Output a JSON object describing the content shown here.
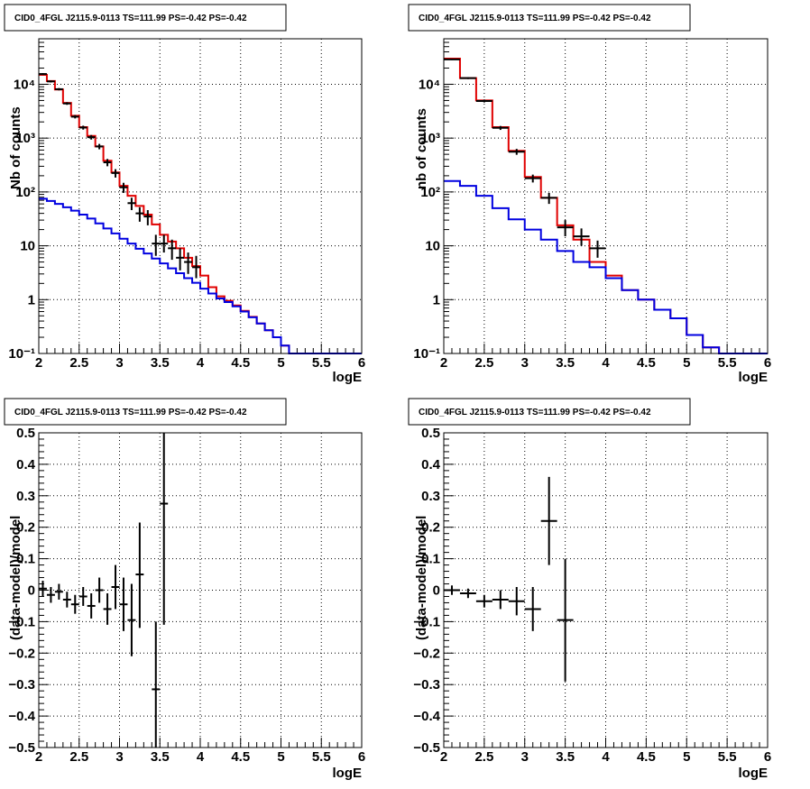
{
  "colors": {
    "data": "#000000",
    "model_total": "#e00000",
    "model_source": "#0000e0",
    "grid": "#000000"
  },
  "chart_data": [
    {
      "type": "line",
      "title": "CID0_4FGL J2115.9-0113 TS=111.99 PS=-0.42 PS=-0.42",
      "xlabel": "logE",
      "ylabel": "Nb of counts",
      "xlim": [
        2,
        6
      ],
      "ylim": [
        0.1,
        70000
      ],
      "yscale": "log",
      "grid": true,
      "x_ticks": [
        "2",
        "2.5",
        "3",
        "3.5",
        "4",
        "4.5",
        "5",
        "5.5",
        "6"
      ],
      "y_ticks": [
        {
          "v": 0.1,
          "t": "10⁻¹"
        },
        {
          "v": 1,
          "t": "1"
        },
        {
          "v": 10,
          "t": "10"
        },
        {
          "v": 100,
          "t": "10²"
        },
        {
          "v": 1000,
          "t": "10³"
        },
        {
          "v": 10000,
          "t": "10⁴"
        }
      ],
      "bin_edges": [
        2.0,
        2.1,
        2.2,
        2.3,
        2.4,
        2.5,
        2.6,
        2.7,
        2.8,
        2.9,
        3.0,
        3.1,
        3.2,
        3.3,
        3.4,
        3.5,
        3.6,
        3.7,
        3.8,
        3.9,
        4.0,
        4.1,
        4.2,
        4.3,
        4.4,
        4.5,
        4.6,
        4.7,
        4.8,
        4.9,
        5.0,
        5.1,
        5.2,
        5.3,
        5.4,
        5.5,
        5.6,
        5.7,
        5.8,
        5.9,
        6.0
      ],
      "series": [
        {
          "role": "model_total",
          "values": [
            15000,
            11500,
            8000,
            4500,
            2600,
            1600,
            1100,
            700,
            380,
            230,
            130,
            85,
            55,
            38,
            25,
            16,
            12,
            9,
            6,
            4.2,
            2.8,
            1.7,
            1.15,
            0.95,
            0.78,
            0.62,
            0.48,
            0.36,
            0.27,
            0.2,
            0.14,
            0.1,
            0.1,
            0.1,
            0.1,
            0.1,
            0.1,
            0.1,
            0.1,
            0.1
          ]
        },
        {
          "role": "model_source",
          "values": [
            75,
            68,
            60,
            52,
            45,
            38,
            32,
            26,
            21,
            17,
            13.5,
            11,
            8.8,
            7.2,
            5.8,
            4.7,
            3.8,
            3.1,
            2.5,
            2.05,
            1.6,
            1.3,
            1.05,
            0.9,
            0.75,
            0.6,
            0.47,
            0.36,
            0.27,
            0.2,
            0.14,
            0.1,
            0.1,
            0.1,
            0.1,
            0.1,
            0.1,
            0.1,
            0.1,
            0.1
          ]
        }
      ],
      "points": [
        {
          "x": 2.05,
          "y": 15500,
          "ex": 0.05,
          "ey": [
            14900,
            16100
          ]
        },
        {
          "x": 2.15,
          "y": 11300,
          "ex": 0.05,
          "ey": [
            10800,
            11800
          ]
        },
        {
          "x": 2.25,
          "y": 8100,
          "ex": 0.05,
          "ey": [
            7700,
            8500
          ]
        },
        {
          "x": 2.35,
          "y": 4400,
          "ex": 0.05,
          "ey": [
            4150,
            4650
          ]
        },
        {
          "x": 2.45,
          "y": 2500,
          "ex": 0.05,
          "ey": [
            2320,
            2680
          ]
        },
        {
          "x": 2.55,
          "y": 1570,
          "ex": 0.05,
          "ey": [
            1440,
            1700
          ]
        },
        {
          "x": 2.65,
          "y": 1040,
          "ex": 0.05,
          "ey": [
            940,
            1140
          ]
        },
        {
          "x": 2.75,
          "y": 700,
          "ex": 0.05,
          "ey": [
            620,
            780
          ]
        },
        {
          "x": 2.85,
          "y": 355,
          "ex": 0.05,
          "ey": [
            300,
            410
          ]
        },
        {
          "x": 2.95,
          "y": 225,
          "ex": 0.05,
          "ey": [
            185,
            265
          ]
        },
        {
          "x": 3.05,
          "y": 122,
          "ex": 0.05,
          "ey": [
            96,
            148
          ]
        },
        {
          "x": 3.15,
          "y": 62,
          "ex": 0.05,
          "ey": [
            46,
            78
          ]
        },
        {
          "x": 3.25,
          "y": 40,
          "ex": 0.05,
          "ey": [
            28,
            52
          ]
        },
        {
          "x": 3.35,
          "y": 35,
          "ex": 0.05,
          "ey": [
            24,
            46
          ]
        },
        {
          "x": 3.45,
          "y": 11,
          "ex": 0.05,
          "ey": [
            6.5,
            16
          ]
        },
        {
          "x": 3.55,
          "y": 11,
          "ex": 0.05,
          "ey": [
            7.5,
            16
          ]
        },
        {
          "x": 3.65,
          "y": 9,
          "ex": 0.05,
          "ey": [
            5.5,
            13
          ]
        },
        {
          "x": 3.75,
          "y": 6,
          "ex": 0.05,
          "ey": [
            3.5,
            9
          ]
        },
        {
          "x": 3.85,
          "y": 5,
          "ex": 0.05,
          "ey": [
            3,
            7.5
          ]
        },
        {
          "x": 3.95,
          "y": 4,
          "ex": 0.05,
          "ey": [
            2.5,
            6.5
          ]
        }
      ]
    },
    {
      "type": "line",
      "title": "CID0_4FGL J2115.9-0113 TS=111.99 PS=-0.42 PS=-0.42",
      "xlabel": "logE",
      "ylabel": "nb of counts",
      "xlim": [
        2,
        6
      ],
      "ylim": [
        0.1,
        70000
      ],
      "yscale": "log",
      "grid": true,
      "x_ticks": [
        "2",
        "2.5",
        "3",
        "3.5",
        "4",
        "4.5",
        "5",
        "5.5",
        "6"
      ],
      "y_ticks": [
        {
          "v": 0.1,
          "t": "10⁻¹"
        },
        {
          "v": 1,
          "t": "1"
        },
        {
          "v": 10,
          "t": "10"
        },
        {
          "v": 100,
          "t": "10²"
        },
        {
          "v": 1000,
          "t": "10³"
        },
        {
          "v": 10000,
          "t": "10⁴"
        }
      ],
      "bin_edges": [
        2.0,
        2.2,
        2.4,
        2.6,
        2.8,
        3.0,
        3.2,
        3.4,
        3.6,
        3.8,
        4.0,
        4.2,
        4.4,
        4.6,
        4.8,
        5.0,
        5.2,
        5.4,
        5.6,
        5.8,
        6.0
      ],
      "series": [
        {
          "role": "model_total",
          "values": [
            30000,
            13000,
            5000,
            1600,
            580,
            190,
            78,
            24,
            13,
            5,
            2.8,
            1.5,
            1.0,
            0.65,
            0.45,
            0.22,
            0.13,
            0.1,
            0.1,
            0.1
          ]
        },
        {
          "role": "model_source",
          "values": [
            160,
            130,
            85,
            50,
            31,
            20,
            13,
            8,
            5,
            4,
            2.5,
            1.5,
            1.0,
            0.65,
            0.45,
            0.22,
            0.13,
            0.1,
            0.1,
            0.1
          ]
        }
      ],
      "points": [
        {
          "x": 2.1,
          "y": 29000,
          "ex": 0.1,
          "ey": [
            28200,
            29800
          ]
        },
        {
          "x": 2.3,
          "y": 13000,
          "ex": 0.1,
          "ey": [
            12500,
            13500
          ]
        },
        {
          "x": 2.5,
          "y": 4900,
          "ex": 0.1,
          "ey": [
            4600,
            5200
          ]
        },
        {
          "x": 2.7,
          "y": 1550,
          "ex": 0.1,
          "ey": [
            1420,
            1680
          ]
        },
        {
          "x": 2.9,
          "y": 560,
          "ex": 0.1,
          "ey": [
            490,
            630
          ]
        },
        {
          "x": 3.1,
          "y": 180,
          "ex": 0.1,
          "ey": [
            150,
            210
          ]
        },
        {
          "x": 3.3,
          "y": 78,
          "ex": 0.1,
          "ey": [
            60,
            96
          ]
        },
        {
          "x": 3.5,
          "y": 22,
          "ex": 0.1,
          "ey": [
            15,
            30
          ]
        },
        {
          "x": 3.7,
          "y": 15,
          "ex": 0.1,
          "ey": [
            10,
            21
          ]
        },
        {
          "x": 3.9,
          "y": 9,
          "ex": 0.1,
          "ey": [
            6,
            12.5
          ]
        }
      ]
    },
    {
      "type": "scatter",
      "title": "CID0_4FGL J2115.9-0113 TS=111.99 PS=-0.42 PS=-0.42",
      "xlabel": "logE",
      "ylabel": "(data-model)/model",
      "xlim": [
        2,
        6
      ],
      "ylim": [
        -0.5,
        0.5
      ],
      "grid": true,
      "x_ticks": [
        "2",
        "2.5",
        "3",
        "3.5",
        "4",
        "4.5",
        "5",
        "5.5",
        "6"
      ],
      "y_ticks": [
        {
          "v": -0.5,
          "t": "−0.5"
        },
        {
          "v": -0.4,
          "t": "−0.4"
        },
        {
          "v": -0.3,
          "t": "−0.3"
        },
        {
          "v": -0.2,
          "t": "−0.2"
        },
        {
          "v": -0.1,
          "t": "−0.1"
        },
        {
          "v": 0,
          "t": "0"
        },
        {
          "v": 0.1,
          "t": "0.1"
        },
        {
          "v": 0.2,
          "t": "0.2"
        },
        {
          "v": 0.3,
          "t": "0.3"
        },
        {
          "v": 0.4,
          "t": "0.4"
        },
        {
          "v": 0.5,
          "t": "0.5"
        }
      ],
      "points": [
        {
          "x": 2.05,
          "y": 0.005,
          "ex": 0.05,
          "ey": [
            -0.02,
            0.03
          ]
        },
        {
          "x": 2.15,
          "y": -0.015,
          "ex": 0.05,
          "ey": [
            -0.04,
            0.01
          ]
        },
        {
          "x": 2.25,
          "y": -0.005,
          "ex": 0.05,
          "ey": [
            -0.03,
            0.02
          ]
        },
        {
          "x": 2.35,
          "y": -0.03,
          "ex": 0.05,
          "ey": [
            -0.055,
            -0.005
          ]
        },
        {
          "x": 2.45,
          "y": -0.045,
          "ex": 0.05,
          "ey": [
            -0.075,
            -0.015
          ]
        },
        {
          "x": 2.55,
          "y": -0.02,
          "ex": 0.05,
          "ey": [
            -0.05,
            0.01
          ]
        },
        {
          "x": 2.65,
          "y": -0.05,
          "ex": 0.05,
          "ey": [
            -0.09,
            -0.01
          ]
        },
        {
          "x": 2.75,
          "y": 0.0,
          "ex": 0.05,
          "ey": [
            -0.04,
            0.04
          ]
        },
        {
          "x": 2.85,
          "y": -0.06,
          "ex": 0.05,
          "ey": [
            -0.11,
            -0.01
          ]
        },
        {
          "x": 2.95,
          "y": 0.01,
          "ex": 0.05,
          "ey": [
            -0.06,
            0.08
          ]
        },
        {
          "x": 3.05,
          "y": -0.045,
          "ex": 0.05,
          "ey": [
            -0.13,
            0.04
          ]
        },
        {
          "x": 3.15,
          "y": -0.095,
          "ex": 0.05,
          "ey": [
            -0.21,
            0.02
          ]
        },
        {
          "x": 3.25,
          "y": 0.05,
          "ex": 0.05,
          "ey": [
            -0.12,
            0.215
          ]
        },
        {
          "x": 3.45,
          "y": -0.315,
          "ex": 0.05,
          "ey": [
            -0.5,
            -0.1
          ]
        },
        {
          "x": 3.55,
          "y": 0.275,
          "ex": 0.05,
          "ey": [
            -0.11,
            0.5
          ]
        }
      ]
    },
    {
      "type": "scatter",
      "title": "CID0_4FGL J2115.9-0113 TS=111.99 PS=-0.42 PS=-0.42",
      "xlabel": "logE",
      "ylabel": "(data-model)/model",
      "xlim": [
        2,
        6
      ],
      "ylim": [
        -0.5,
        0.5
      ],
      "grid": true,
      "x_ticks": [
        "2",
        "2.5",
        "3",
        "3.5",
        "4",
        "4.5",
        "5",
        "5.5",
        "6"
      ],
      "y_ticks": [
        {
          "v": -0.5,
          "t": "−0.5"
        },
        {
          "v": -0.4,
          "t": "−0.4"
        },
        {
          "v": -0.3,
          "t": "−0.3"
        },
        {
          "v": -0.2,
          "t": "−0.2"
        },
        {
          "v": -0.1,
          "t": "−0.1"
        },
        {
          "v": 0,
          "t": "0"
        },
        {
          "v": 0.1,
          "t": "0.1"
        },
        {
          "v": 0.2,
          "t": "0.2"
        },
        {
          "v": 0.3,
          "t": "0.3"
        },
        {
          "v": 0.4,
          "t": "0.4"
        },
        {
          "v": 0.5,
          "t": "0.5"
        }
      ],
      "points": [
        {
          "x": 2.1,
          "y": 0.0,
          "ex": 0.1,
          "ey": [
            -0.015,
            0.015
          ]
        },
        {
          "x": 2.3,
          "y": -0.01,
          "ex": 0.1,
          "ey": [
            -0.025,
            0.005
          ]
        },
        {
          "x": 2.5,
          "y": -0.035,
          "ex": 0.1,
          "ey": [
            -0.055,
            -0.015
          ]
        },
        {
          "x": 2.7,
          "y": -0.03,
          "ex": 0.1,
          "ey": [
            -0.06,
            0.0
          ]
        },
        {
          "x": 2.9,
          "y": -0.035,
          "ex": 0.1,
          "ey": [
            -0.08,
            0.01
          ]
        },
        {
          "x": 3.1,
          "y": -0.06,
          "ex": 0.1,
          "ey": [
            -0.13,
            0.01
          ]
        },
        {
          "x": 3.3,
          "y": 0.22,
          "ex": 0.1,
          "ey": [
            0.08,
            0.36
          ]
        },
        {
          "x": 3.5,
          "y": -0.095,
          "ex": 0.1,
          "ey": [
            -0.29,
            0.1
          ]
        }
      ]
    }
  ]
}
